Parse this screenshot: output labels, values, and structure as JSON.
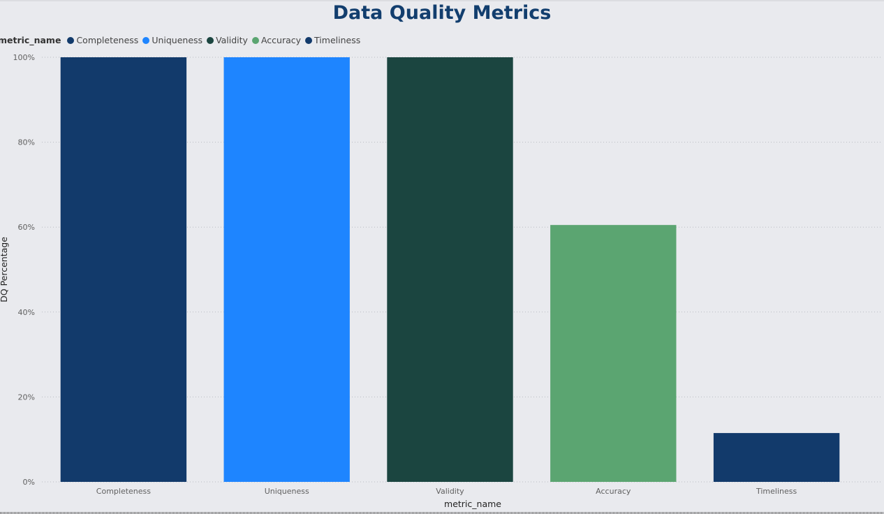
{
  "chart_data": {
    "type": "bar",
    "title": "Data Quality Metrics",
    "xlabel": "metric_name",
    "ylabel": "DQ Percentage",
    "categories": [
      "Completeness",
      "Uniqueness",
      "Validity",
      "Accuracy",
      "Timeliness"
    ],
    "values": [
      100,
      100,
      100,
      60.5,
      11.5
    ],
    "colors": [
      "#123a6b",
      "#1e85ff",
      "#1b4540",
      "#5ba571",
      "#123a6b"
    ],
    "ylim": [
      0,
      100
    ],
    "yticks": [
      0,
      20,
      40,
      60,
      80,
      100
    ],
    "ytick_labels": [
      "0%",
      "20%",
      "40%",
      "60%",
      "80%",
      "100%"
    ],
    "grid": "horizontal dotted",
    "legend": {
      "title": "metric_name",
      "placement": "top-left",
      "entries": [
        {
          "label": "Completeness",
          "color": "#123a6b"
        },
        {
          "label": "Uniqueness",
          "color": "#1e85ff"
        },
        {
          "label": "Validity",
          "color": "#1b4540"
        },
        {
          "label": "Accuracy",
          "color": "#5ba571"
        },
        {
          "label": "Timeliness",
          "color": "#123a6b"
        }
      ]
    }
  }
}
